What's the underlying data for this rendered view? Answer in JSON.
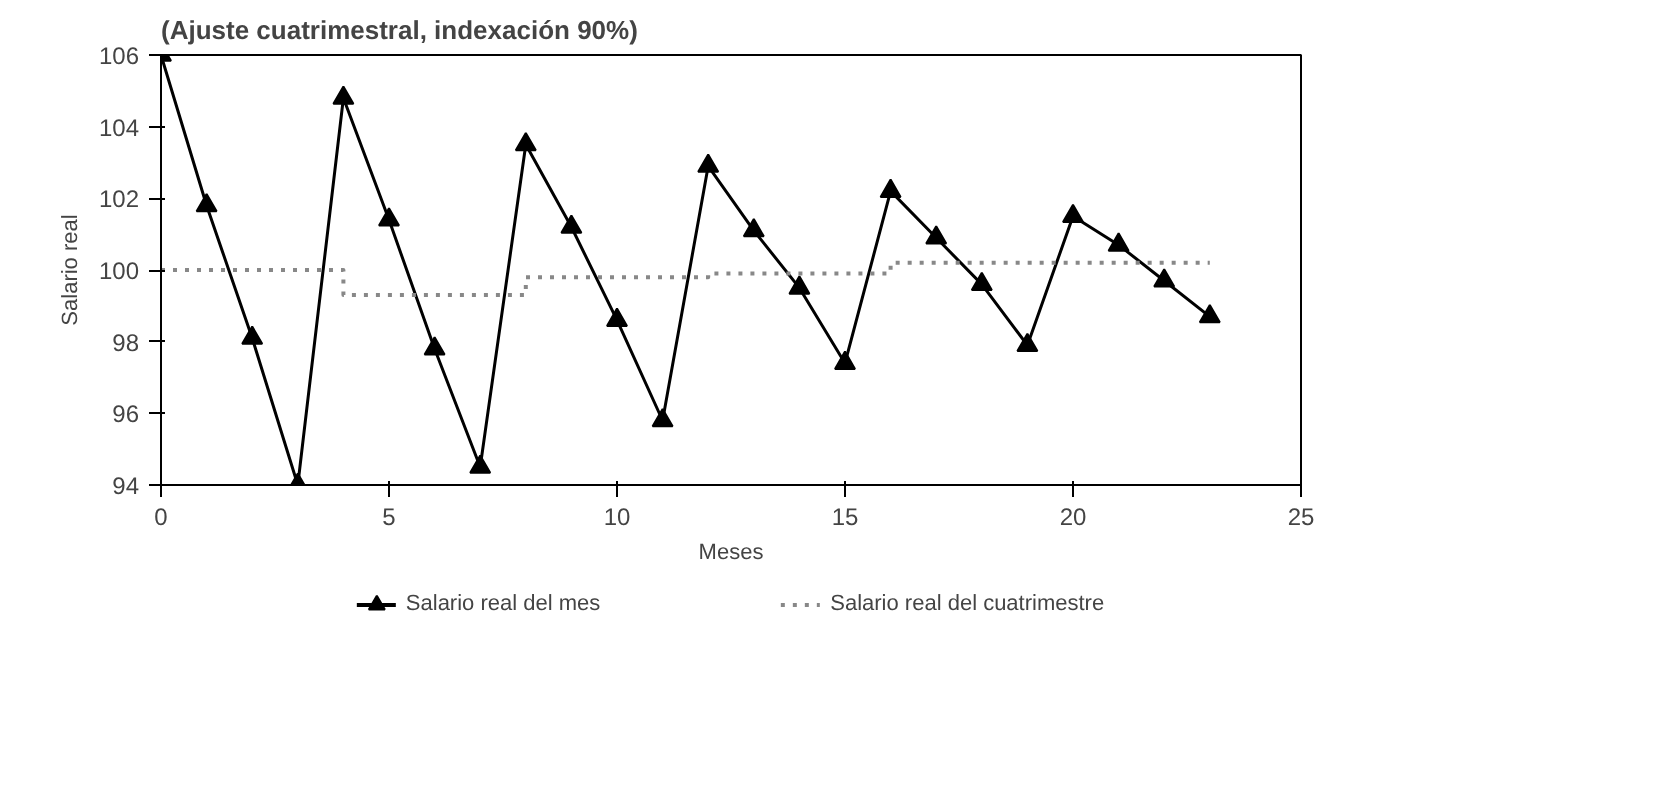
{
  "chart_data": {
    "type": "line",
    "title": "(Ajuste cuatrimestral, indexación 90%)",
    "xlabel": "Meses",
    "ylabel": "Salario real",
    "xlim": [
      0,
      25
    ],
    "xticks": [
      0,
      5,
      10,
      15,
      20,
      25
    ],
    "ylim": [
      94,
      106
    ],
    "yticks": [
      94,
      96,
      98,
      100,
      102,
      104,
      106
    ],
    "grid": false,
    "legend": "bottom",
    "series": [
      {
        "name": "Salario real del mes",
        "color": "#000000",
        "marker": "triangle",
        "line_style": "solid",
        "x": [
          0,
          1,
          2,
          3,
          4,
          5,
          6,
          7,
          8,
          9,
          10,
          11,
          12,
          13,
          14,
          15,
          16,
          17,
          18,
          19,
          20,
          21,
          22,
          23
        ],
        "values": [
          106.0,
          101.8,
          98.1,
          94.0,
          104.8,
          101.4,
          97.8,
          94.5,
          103.5,
          101.2,
          98.6,
          95.8,
          102.9,
          101.1,
          99.5,
          97.4,
          102.2,
          100.9,
          99.6,
          97.9,
          101.5,
          100.7,
          99.7,
          98.7
        ]
      },
      {
        "name": "Salario real del cuatrimestre",
        "type": "step",
        "color": "#888888",
        "marker": "none",
        "line_style": "dotted",
        "x": [
          0,
          4,
          8,
          12,
          16,
          20,
          23
        ],
        "values": [
          100.0,
          99.3,
          99.8,
          99.9,
          100.2,
          100.2,
          100.2
        ]
      }
    ]
  }
}
